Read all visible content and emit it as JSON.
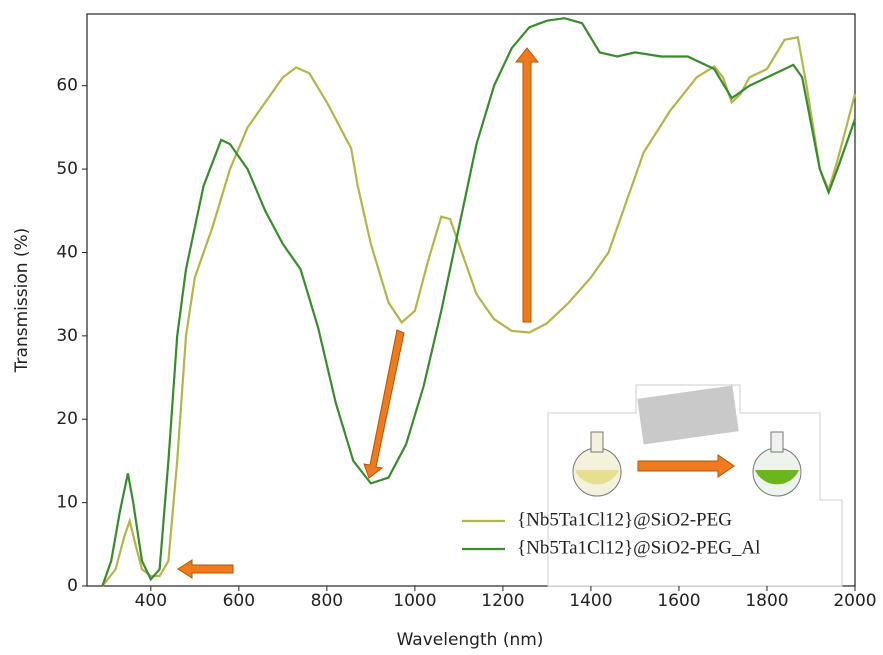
{
  "chart_data": {
    "type": "line",
    "x_label": "Wavelength (nm)",
    "y_label": "Transmission (%)",
    "xlim": [
      255,
      2000
    ],
    "ylim": [
      0,
      68.6
    ],
    "xticks": [
      400,
      600,
      800,
      1000,
      1200,
      1400,
      1600,
      1800,
      2000
    ],
    "yticks": [
      0,
      10,
      20,
      30,
      40,
      50,
      60
    ],
    "grid": false,
    "legend": "lower right",
    "series": [
      {
        "name": "{Nb5Ta1Cl12}@SiO2-PEG",
        "color": "#b3b54a",
        "x": [
          290,
          320,
          340,
          352,
          365,
          380,
          400,
          420,
          440,
          460,
          480,
          500,
          540,
          580,
          620,
          660,
          700,
          730,
          760,
          800,
          840,
          850,
          855,
          870,
          900,
          940,
          970,
          1000,
          1030,
          1060,
          1080,
          1100,
          1140,
          1180,
          1220,
          1260,
          1300,
          1350,
          1400,
          1440,
          1480,
          1520,
          1580,
          1640,
          1680,
          1700,
          1720,
          1740,
          1760,
          1800,
          1840,
          1870,
          1890,
          1920,
          1940,
          1960,
          2000
        ],
        "values": [
          0,
          2,
          6,
          7.8,
          5,
          2,
          1.2,
          1.2,
          3,
          15,
          30,
          37,
          43,
          50,
          55,
          58,
          61,
          62.2,
          61.5,
          58,
          54,
          53,
          52.5,
          48,
          41,
          34,
          31.6,
          33,
          39,
          44.3,
          44,
          41,
          35,
          32,
          30.6,
          30.4,
          31.5,
          34,
          37,
          40,
          46,
          52,
          57,
          61,
          62.3,
          61,
          58,
          59,
          61,
          62,
          65.5,
          65.8,
          60,
          50,
          47.5,
          51,
          59
        ]
      },
      {
        "name": "{Nb5Ta1Cl12}@SiO2-PEG_Al",
        "color": "#3a8a2e",
        "x": [
          290,
          310,
          330,
          348,
          360,
          380,
          400,
          420,
          440,
          460,
          480,
          520,
          560,
          580,
          620,
          660,
          700,
          740,
          780,
          820,
          860,
          900,
          940,
          980,
          1020,
          1060,
          1100,
          1140,
          1180,
          1220,
          1260,
          1300,
          1340,
          1380,
          1420,
          1460,
          1500,
          1560,
          1620,
          1680,
          1720,
          1760,
          1800,
          1860,
          1880,
          1920,
          1940,
          1960,
          2000
        ],
        "values": [
          0,
          3,
          9,
          13.5,
          10,
          3,
          0.8,
          2,
          15,
          30,
          38,
          48,
          53.5,
          53,
          50,
          45,
          41,
          38,
          31,
          22,
          15,
          12.3,
          13,
          17,
          24,
          33,
          43,
          53,
          60,
          64.5,
          67,
          67.8,
          68.1,
          67.5,
          64,
          63.5,
          64,
          63.5,
          63.5,
          62,
          58.5,
          60,
          61,
          62.5,
          61,
          50,
          47.2,
          50,
          56
        ]
      }
    ]
  }
}
